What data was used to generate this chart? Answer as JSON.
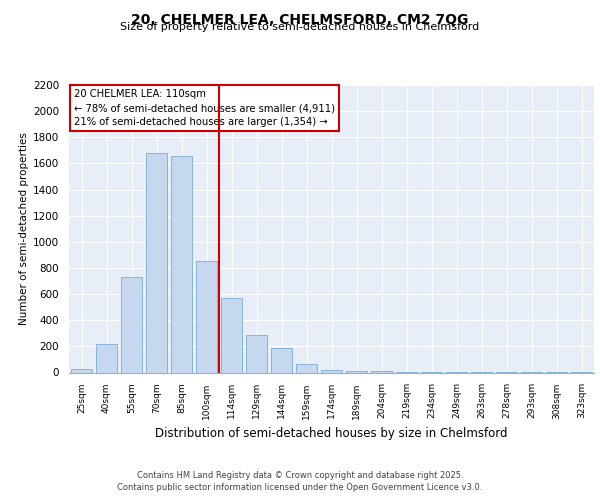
{
  "title1": "20, CHELMER LEA, CHELMSFORD, CM2 7QG",
  "title2": "Size of property relative to semi-detached houses in Chelmsford",
  "xlabel": "Distribution of semi-detached houses by size in Chelmsford",
  "ylabel": "Number of semi-detached properties",
  "bar_labels": [
    "25sqm",
    "40sqm",
    "55sqm",
    "70sqm",
    "85sqm",
    "100sqm",
    "114sqm",
    "129sqm",
    "144sqm",
    "159sqm",
    "174sqm",
    "189sqm",
    "204sqm",
    "219sqm",
    "234sqm",
    "249sqm",
    "263sqm",
    "278sqm",
    "293sqm",
    "308sqm",
    "323sqm"
  ],
  "bar_values": [
    30,
    220,
    730,
    1680,
    1660,
    850,
    570,
    290,
    185,
    65,
    20,
    10,
    8,
    5,
    5,
    3,
    2,
    2,
    1,
    1,
    1
  ],
  "bar_color": "#c5d8f0",
  "bar_edge_color": "#7aadd4",
  "vline_color": "#cc0000",
  "annotation_title": "20 CHELMER LEA: 110sqm",
  "annotation_line1": "← 78% of semi-detached houses are smaller (4,911)",
  "annotation_line2": "21% of semi-detached houses are larger (1,354) →",
  "ylim": [
    0,
    2200
  ],
  "yticks": [
    0,
    200,
    400,
    600,
    800,
    1000,
    1200,
    1400,
    1600,
    1800,
    2000,
    2200
  ],
  "bg_color": "#e8eef8",
  "grid_color": "#ffffff",
  "footer1": "Contains HM Land Registry data © Crown copyright and database right 2025.",
  "footer2": "Contains public sector information licensed under the Open Government Licence v3.0."
}
